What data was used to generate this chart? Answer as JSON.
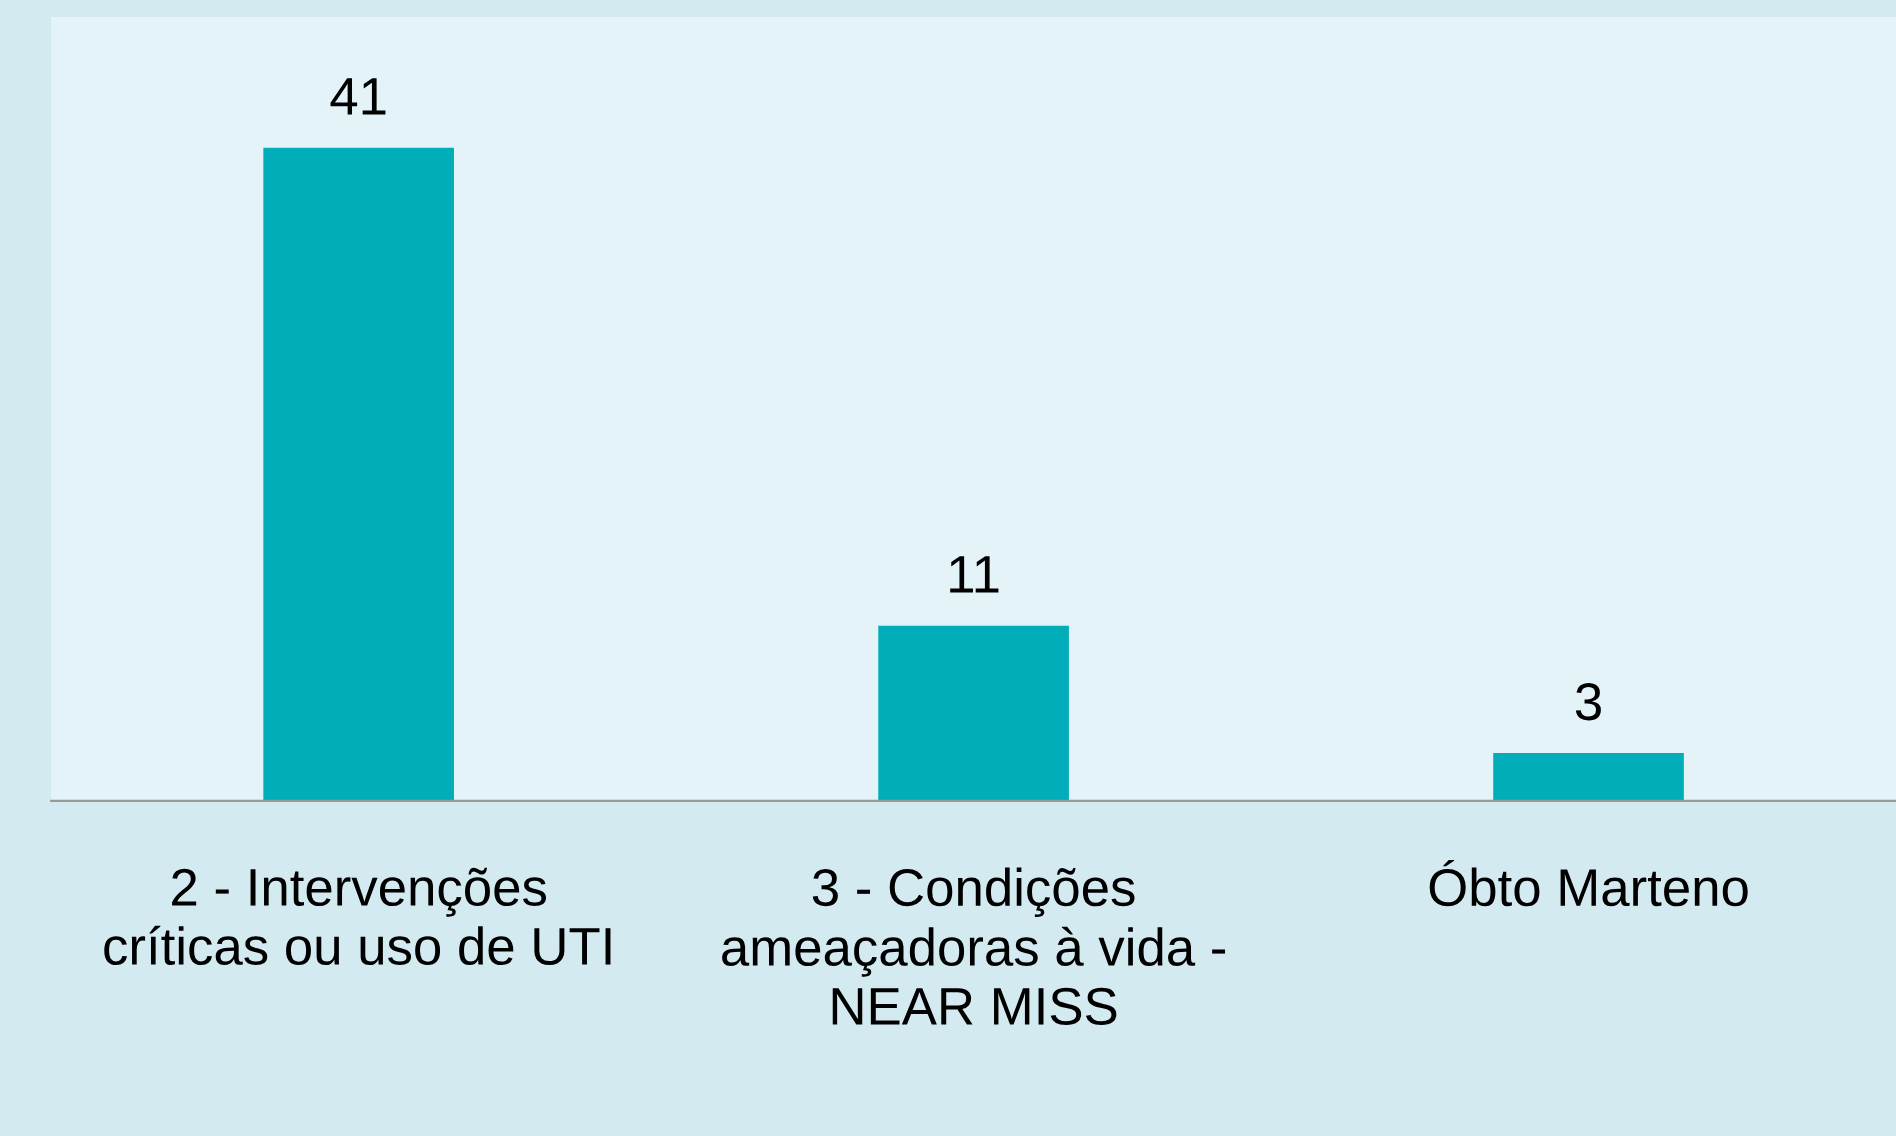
{
  "chart_data": {
    "type": "bar",
    "categories": [
      "2 - Intervenções\ncríticas ou uso de UTI",
      "3 - Condições\nameaçadoras à vida -\nNEAR MISS",
      "Óbto Marteno"
    ],
    "values": [
      41,
      11,
      3
    ],
    "color": "#00adb9",
    "data_labels": true,
    "grid": false,
    "legend": false
  }
}
